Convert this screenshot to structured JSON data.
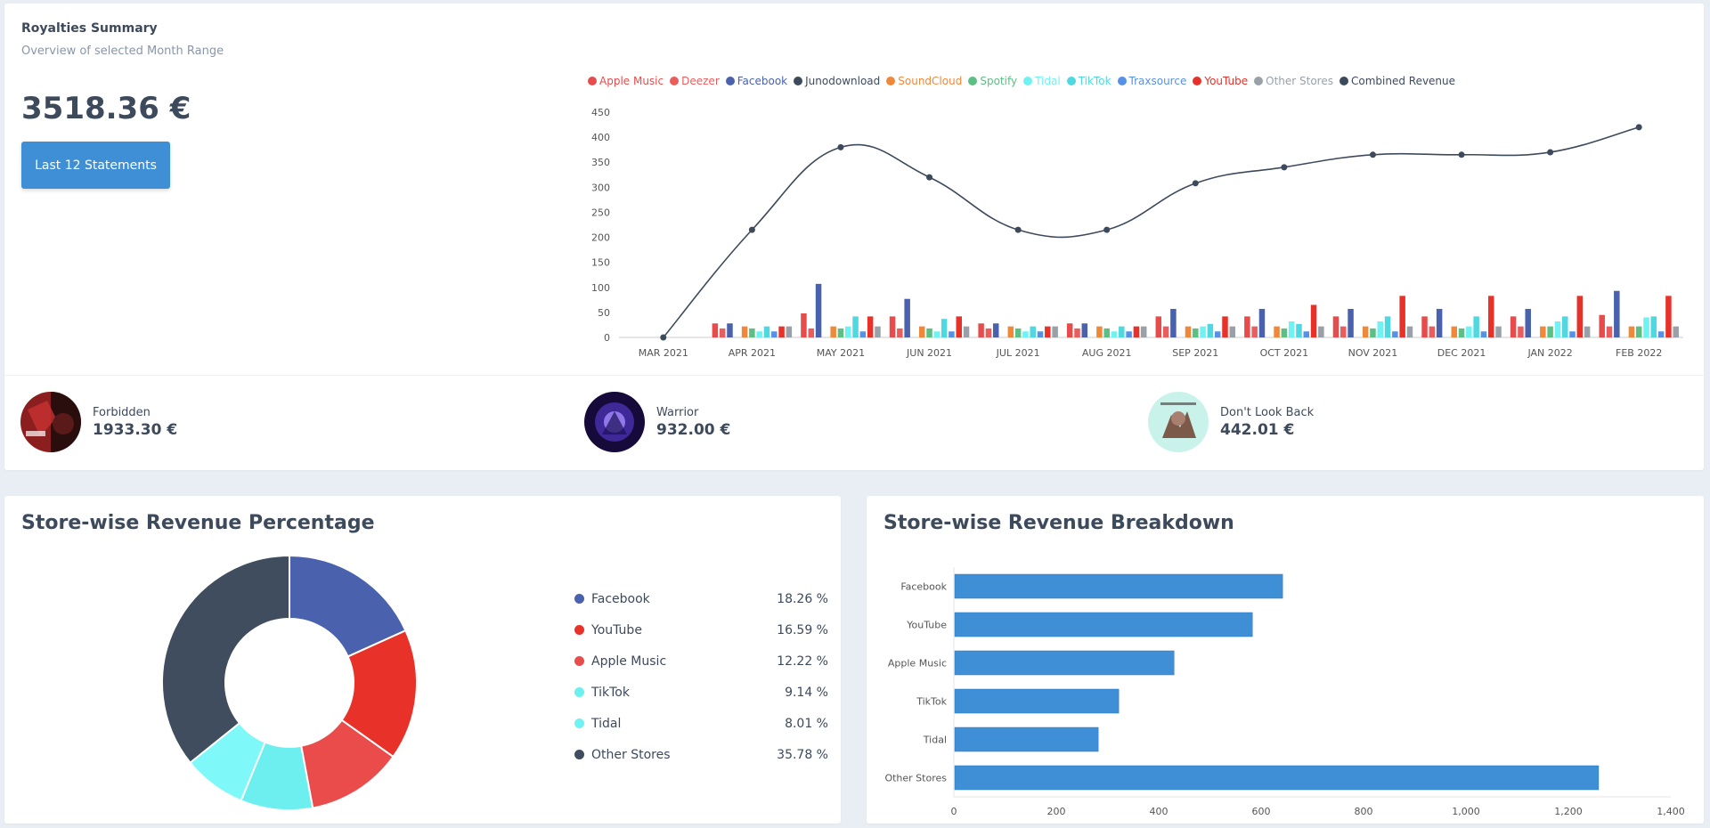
{
  "summary": {
    "title": "Royalties Summary",
    "subtitle": "Overview of selected Month Range",
    "total": "3518.36 €",
    "button_label": "Last 12 Statements"
  },
  "releases": [
    {
      "name": "Forbidden",
      "amount": "1933.30 €"
    },
    {
      "name": "Warrior",
      "amount": "932.00 €"
    },
    {
      "name": "Don't Look Back",
      "amount": "442.01 €"
    }
  ],
  "chart_data": [
    {
      "type": "bar",
      "categories": [
        "MAR 2021",
        "APR 2021",
        "MAY 2021",
        "JUN 2021",
        "JUL 2021",
        "AUG 2021",
        "SEP 2021",
        "OCT 2021",
        "NOV 2021",
        "DEC 2021",
        "JAN 2022",
        "FEB 2022"
      ],
      "ylim": [
        0,
        450
      ],
      "yticks": [
        0,
        50,
        100,
        150,
        200,
        250,
        300,
        350,
        400,
        450
      ],
      "legend_position": "top",
      "series": [
        {
          "name": "Apple Music",
          "color": "#e74c4c",
          "values": [
            0,
            28,
            48,
            42,
            28,
            28,
            42,
            42,
            42,
            42,
            42,
            45
          ]
        },
        {
          "name": "Deezer",
          "color": "#ea5d5d",
          "values": [
            0,
            18,
            18,
            18,
            18,
            18,
            22,
            22,
            22,
            22,
            22,
            22
          ]
        },
        {
          "name": "Facebook",
          "color": "#4a62ad",
          "values": [
            0,
            28,
            107,
            77,
            28,
            28,
            57,
            57,
            57,
            57,
            57,
            93
          ]
        },
        {
          "name": "Junodownload",
          "color": "#3d4a5c",
          "values": [
            0,
            0,
            0,
            0,
            0,
            0,
            0,
            0,
            0,
            0,
            0,
            0
          ]
        },
        {
          "name": "SoundCloud",
          "color": "#f0883a",
          "values": [
            0,
            22,
            22,
            22,
            22,
            22,
            22,
            22,
            22,
            22,
            22,
            22
          ]
        },
        {
          "name": "Spotify",
          "color": "#5cbf84",
          "values": [
            0,
            18,
            18,
            18,
            18,
            18,
            18,
            18,
            18,
            18,
            22,
            22
          ]
        },
        {
          "name": "Tidal",
          "color": "#6ff2f2",
          "values": [
            0,
            12,
            22,
            12,
            12,
            12,
            22,
            32,
            32,
            22,
            32,
            40
          ]
        },
        {
          "name": "TikTok",
          "color": "#4fd8e0",
          "values": [
            0,
            22,
            42,
            37,
            22,
            22,
            27,
            27,
            42,
            42,
            42,
            42
          ]
        },
        {
          "name": "Traxsource",
          "color": "#5591e6",
          "values": [
            0,
            12,
            12,
            12,
            12,
            12,
            12,
            12,
            12,
            12,
            12,
            12
          ]
        },
        {
          "name": "YouTube",
          "color": "#e83128",
          "values": [
            0,
            22,
            42,
            42,
            22,
            22,
            42,
            65,
            83,
            83,
            83,
            83
          ]
        },
        {
          "name": "Other Stores",
          "color": "#9aa0a8",
          "values": [
            0,
            22,
            22,
            22,
            22,
            22,
            22,
            22,
            22,
            22,
            22,
            22
          ]
        }
      ],
      "line_series": {
        "name": "Combined Revenue",
        "color": "#3d4a5c",
        "values": [
          0,
          215,
          380,
          320,
          215,
          215,
          308,
          340,
          365,
          365,
          370,
          420
        ]
      }
    },
    {
      "type": "pie",
      "title": "Store-wise Revenue Percentage",
      "labels": [
        "Facebook",
        "YouTube",
        "Apple Music",
        "TikTok",
        "Tidal",
        "Other Stores"
      ],
      "values": [
        18.26,
        16.59,
        12.22,
        9.14,
        8.01,
        35.78
      ],
      "display": [
        "18.26 %",
        "16.59 %",
        "12.22 %",
        "9.14 %",
        "8.01 %",
        "35.78 %"
      ],
      "colors": [
        "#4a62ad",
        "#e83128",
        "#ea4c4c",
        "#6eefef",
        "#7ef8f8",
        "#3f4d5e"
      ]
    },
    {
      "type": "bar",
      "orientation": "horizontal",
      "title": "Store-wise Revenue Breakdown",
      "categories": [
        "Facebook",
        "YouTube",
        "Apple Music",
        "TikTok",
        "Tidal",
        "Other Stores"
      ],
      "values": [
        642,
        583,
        430,
        322,
        282,
        1259
      ],
      "xlim": [
        0,
        1400
      ],
      "xticks": [
        0,
        200,
        400,
        600,
        800,
        1000,
        1200,
        1400
      ],
      "xtick_labels": [
        "0",
        "200",
        "400",
        "600",
        "800",
        "1,000",
        "1,200",
        "1,400"
      ],
      "color": "#3f8fd6"
    }
  ]
}
